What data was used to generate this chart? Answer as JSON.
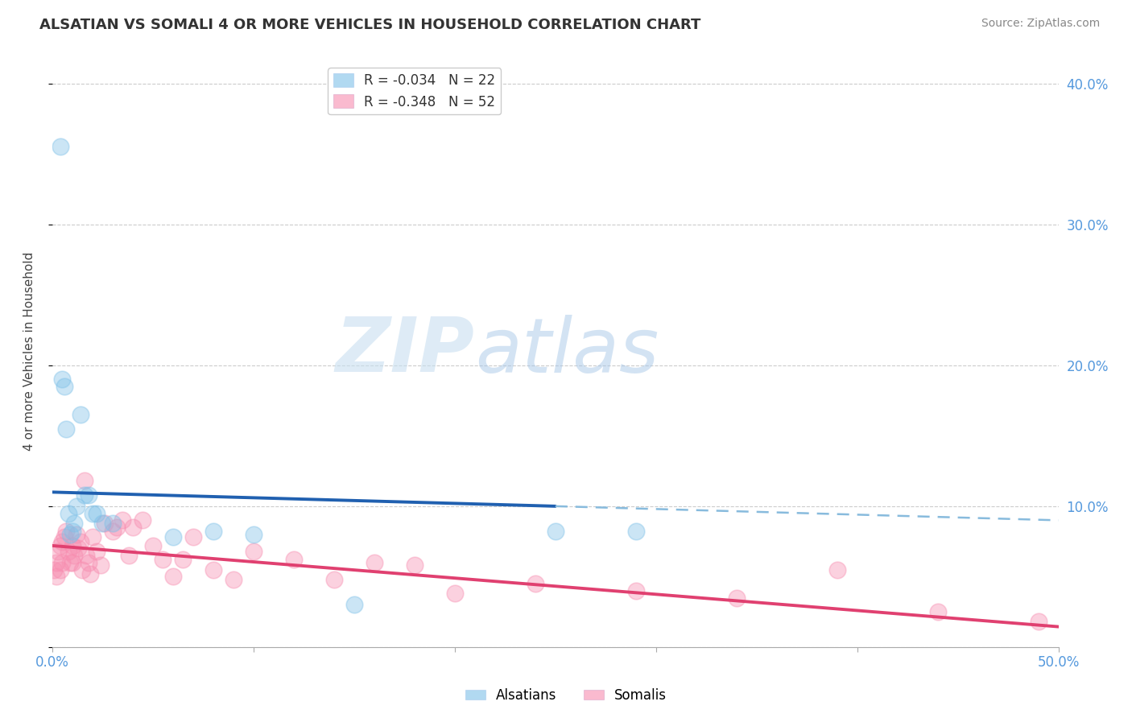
{
  "title": "ALSATIAN VS SOMALI 4 OR MORE VEHICLES IN HOUSEHOLD CORRELATION CHART",
  "source": "Source: ZipAtlas.com",
  "ylabel": "4 or more Vehicles in Household",
  "xlim": [
    0.0,
    0.5
  ],
  "ylim": [
    0.0,
    0.42
  ],
  "yticks": [
    0.0,
    0.1,
    0.2,
    0.3,
    0.4
  ],
  "ytick_labels": [
    "",
    "10.0%",
    "20.0%",
    "30.0%",
    "40.0%"
  ],
  "xticks": [
    0.0,
    0.1,
    0.2,
    0.3,
    0.4,
    0.5
  ],
  "xtick_labels": [
    "0.0%",
    "",
    "",
    "",
    "",
    "50.0%"
  ],
  "legend_alsatian": "R = -0.034   N = 22",
  "legend_somali": "R = -0.348   N = 52",
  "color_alsatian": "#7dc0e8",
  "color_somali": "#f78db0",
  "watermark_zip": "ZIP",
  "watermark_atlas": "atlas",
  "alsatian_x": [
    0.004,
    0.005,
    0.006,
    0.007,
    0.008,
    0.009,
    0.01,
    0.011,
    0.012,
    0.014,
    0.016,
    0.018,
    0.02,
    0.022,
    0.025,
    0.03,
    0.06,
    0.08,
    0.1,
    0.15,
    0.25,
    0.29
  ],
  "alsatian_y": [
    0.355,
    0.19,
    0.185,
    0.155,
    0.095,
    0.08,
    0.082,
    0.088,
    0.1,
    0.165,
    0.108,
    0.108,
    0.095,
    0.095,
    0.088,
    0.088,
    0.078,
    0.082,
    0.08,
    0.03,
    0.082,
    0.082
  ],
  "somali_x": [
    0.001,
    0.002,
    0.002,
    0.003,
    0.004,
    0.004,
    0.005,
    0.005,
    0.006,
    0.007,
    0.008,
    0.009,
    0.01,
    0.01,
    0.011,
    0.012,
    0.013,
    0.014,
    0.015,
    0.016,
    0.017,
    0.018,
    0.019,
    0.02,
    0.022,
    0.024,
    0.026,
    0.03,
    0.032,
    0.035,
    0.038,
    0.04,
    0.045,
    0.05,
    0.055,
    0.06,
    0.065,
    0.07,
    0.08,
    0.09,
    0.1,
    0.12,
    0.14,
    0.16,
    0.18,
    0.2,
    0.24,
    0.29,
    0.34,
    0.39,
    0.44,
    0.49
  ],
  "somali_y": [
    0.055,
    0.05,
    0.06,
    0.068,
    0.072,
    0.055,
    0.075,
    0.06,
    0.078,
    0.082,
    0.068,
    0.06,
    0.072,
    0.06,
    0.065,
    0.08,
    0.07,
    0.075,
    0.055,
    0.118,
    0.065,
    0.06,
    0.052,
    0.078,
    0.068,
    0.058,
    0.088,
    0.082,
    0.085,
    0.09,
    0.065,
    0.085,
    0.09,
    0.072,
    0.062,
    0.05,
    0.062,
    0.078,
    0.055,
    0.048,
    0.068,
    0.062,
    0.048,
    0.06,
    0.058,
    0.038,
    0.045,
    0.04,
    0.035,
    0.055,
    0.025,
    0.018
  ],
  "trend_alsatian_start_x": 0.0,
  "trend_alsatian_end_solid_x": 0.25,
  "trend_alsatian_end_dash_x": 0.5,
  "trend_alsatian_start_y": 0.11,
  "trend_alsatian_slope": -0.04,
  "trend_somali_start_x": 0.0,
  "trend_somali_end_x": 0.5,
  "trend_somali_start_y": 0.072,
  "trend_somali_slope": -0.115
}
